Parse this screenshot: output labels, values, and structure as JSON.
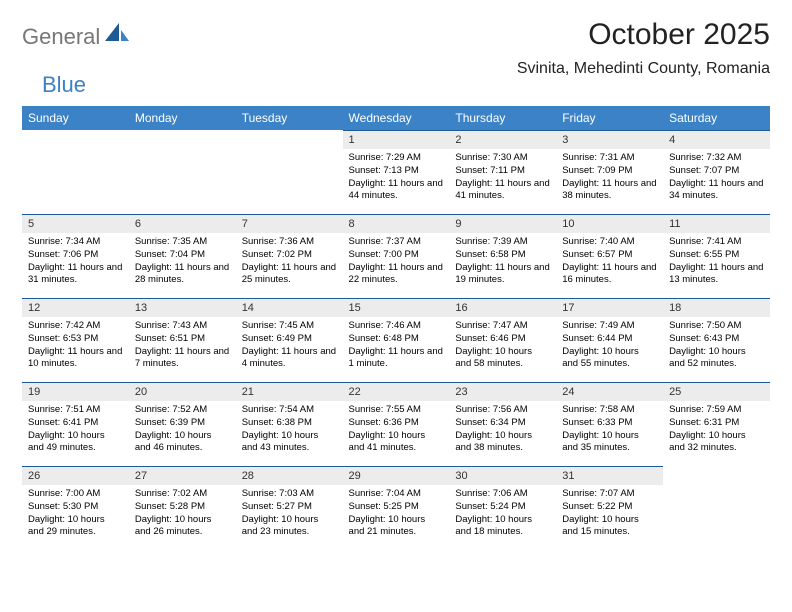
{
  "brand": {
    "general": "General",
    "blue": "Blue"
  },
  "title": "October 2025",
  "location": "Svinita, Mehedinti County, Romania",
  "colors": {
    "header_bg": "#3c82c6",
    "header_fg": "#ffffff",
    "daynum_bg": "#ececec",
    "rule": "#1d5a96",
    "logo_gray": "#777777",
    "logo_blue": "#3c82c6",
    "text": "#000000",
    "bg": "#ffffff"
  },
  "weekdays": [
    "Sunday",
    "Monday",
    "Tuesday",
    "Wednesday",
    "Thursday",
    "Friday",
    "Saturday"
  ],
  "weeks": [
    [
      null,
      null,
      null,
      {
        "n": "1",
        "sr": "Sunrise: 7:29 AM",
        "ss": "Sunset: 7:13 PM",
        "dl": "Daylight: 11 hours and 44 minutes."
      },
      {
        "n": "2",
        "sr": "Sunrise: 7:30 AM",
        "ss": "Sunset: 7:11 PM",
        "dl": "Daylight: 11 hours and 41 minutes."
      },
      {
        "n": "3",
        "sr": "Sunrise: 7:31 AM",
        "ss": "Sunset: 7:09 PM",
        "dl": "Daylight: 11 hours and 38 minutes."
      },
      {
        "n": "4",
        "sr": "Sunrise: 7:32 AM",
        "ss": "Sunset: 7:07 PM",
        "dl": "Daylight: 11 hours and 34 minutes."
      }
    ],
    [
      {
        "n": "5",
        "sr": "Sunrise: 7:34 AM",
        "ss": "Sunset: 7:06 PM",
        "dl": "Daylight: 11 hours and 31 minutes."
      },
      {
        "n": "6",
        "sr": "Sunrise: 7:35 AM",
        "ss": "Sunset: 7:04 PM",
        "dl": "Daylight: 11 hours and 28 minutes."
      },
      {
        "n": "7",
        "sr": "Sunrise: 7:36 AM",
        "ss": "Sunset: 7:02 PM",
        "dl": "Daylight: 11 hours and 25 minutes."
      },
      {
        "n": "8",
        "sr": "Sunrise: 7:37 AM",
        "ss": "Sunset: 7:00 PM",
        "dl": "Daylight: 11 hours and 22 minutes."
      },
      {
        "n": "9",
        "sr": "Sunrise: 7:39 AM",
        "ss": "Sunset: 6:58 PM",
        "dl": "Daylight: 11 hours and 19 minutes."
      },
      {
        "n": "10",
        "sr": "Sunrise: 7:40 AM",
        "ss": "Sunset: 6:57 PM",
        "dl": "Daylight: 11 hours and 16 minutes."
      },
      {
        "n": "11",
        "sr": "Sunrise: 7:41 AM",
        "ss": "Sunset: 6:55 PM",
        "dl": "Daylight: 11 hours and 13 minutes."
      }
    ],
    [
      {
        "n": "12",
        "sr": "Sunrise: 7:42 AM",
        "ss": "Sunset: 6:53 PM",
        "dl": "Daylight: 11 hours and 10 minutes."
      },
      {
        "n": "13",
        "sr": "Sunrise: 7:43 AM",
        "ss": "Sunset: 6:51 PM",
        "dl": "Daylight: 11 hours and 7 minutes."
      },
      {
        "n": "14",
        "sr": "Sunrise: 7:45 AM",
        "ss": "Sunset: 6:49 PM",
        "dl": "Daylight: 11 hours and 4 minutes."
      },
      {
        "n": "15",
        "sr": "Sunrise: 7:46 AM",
        "ss": "Sunset: 6:48 PM",
        "dl": "Daylight: 11 hours and 1 minute."
      },
      {
        "n": "16",
        "sr": "Sunrise: 7:47 AM",
        "ss": "Sunset: 6:46 PM",
        "dl": "Daylight: 10 hours and 58 minutes."
      },
      {
        "n": "17",
        "sr": "Sunrise: 7:49 AM",
        "ss": "Sunset: 6:44 PM",
        "dl": "Daylight: 10 hours and 55 minutes."
      },
      {
        "n": "18",
        "sr": "Sunrise: 7:50 AM",
        "ss": "Sunset: 6:43 PM",
        "dl": "Daylight: 10 hours and 52 minutes."
      }
    ],
    [
      {
        "n": "19",
        "sr": "Sunrise: 7:51 AM",
        "ss": "Sunset: 6:41 PM",
        "dl": "Daylight: 10 hours and 49 minutes."
      },
      {
        "n": "20",
        "sr": "Sunrise: 7:52 AM",
        "ss": "Sunset: 6:39 PM",
        "dl": "Daylight: 10 hours and 46 minutes."
      },
      {
        "n": "21",
        "sr": "Sunrise: 7:54 AM",
        "ss": "Sunset: 6:38 PM",
        "dl": "Daylight: 10 hours and 43 minutes."
      },
      {
        "n": "22",
        "sr": "Sunrise: 7:55 AM",
        "ss": "Sunset: 6:36 PM",
        "dl": "Daylight: 10 hours and 41 minutes."
      },
      {
        "n": "23",
        "sr": "Sunrise: 7:56 AM",
        "ss": "Sunset: 6:34 PM",
        "dl": "Daylight: 10 hours and 38 minutes."
      },
      {
        "n": "24",
        "sr": "Sunrise: 7:58 AM",
        "ss": "Sunset: 6:33 PM",
        "dl": "Daylight: 10 hours and 35 minutes."
      },
      {
        "n": "25",
        "sr": "Sunrise: 7:59 AM",
        "ss": "Sunset: 6:31 PM",
        "dl": "Daylight: 10 hours and 32 minutes."
      }
    ],
    [
      {
        "n": "26",
        "sr": "Sunrise: 7:00 AM",
        "ss": "Sunset: 5:30 PM",
        "dl": "Daylight: 10 hours and 29 minutes."
      },
      {
        "n": "27",
        "sr": "Sunrise: 7:02 AM",
        "ss": "Sunset: 5:28 PM",
        "dl": "Daylight: 10 hours and 26 minutes."
      },
      {
        "n": "28",
        "sr": "Sunrise: 7:03 AM",
        "ss": "Sunset: 5:27 PM",
        "dl": "Daylight: 10 hours and 23 minutes."
      },
      {
        "n": "29",
        "sr": "Sunrise: 7:04 AM",
        "ss": "Sunset: 5:25 PM",
        "dl": "Daylight: 10 hours and 21 minutes."
      },
      {
        "n": "30",
        "sr": "Sunrise: 7:06 AM",
        "ss": "Sunset: 5:24 PM",
        "dl": "Daylight: 10 hours and 18 minutes."
      },
      {
        "n": "31",
        "sr": "Sunrise: 7:07 AM",
        "ss": "Sunset: 5:22 PM",
        "dl": "Daylight: 10 hours and 15 minutes."
      },
      null
    ]
  ]
}
